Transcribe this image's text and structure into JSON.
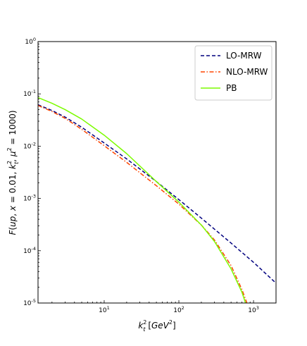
{
  "chart_data": {
    "type": "line",
    "xlabel": "k_t^2 [GeV^2]",
    "ylabel": "F(up, x = 0.01, k_t^2, μ^2 = 1000)",
    "xscale": "log",
    "yscale": "log",
    "xlim": [
      1.3,
      2000
    ],
    "ylim": [
      1e-05,
      1
    ],
    "x_ticks": [
      {
        "base": "10",
        "exp": "1",
        "value": 10
      },
      {
        "base": "10",
        "exp": "2",
        "value": 100
      },
      {
        "base": "10",
        "exp": "3",
        "value": 1000
      }
    ],
    "y_ticks": [
      {
        "base": "10",
        "exp": "0",
        "value": 1
      },
      {
        "base": "10",
        "exp": "-1",
        "value": 0.1
      },
      {
        "base": "10",
        "exp": "-2",
        "value": 0.01
      },
      {
        "base": "10",
        "exp": "-3",
        "value": 0.001
      },
      {
        "base": "10",
        "exp": "-4",
        "value": 0.0001
      },
      {
        "base": "10",
        "exp": "-5",
        "value": 1e-05
      }
    ],
    "legend_position": "top-right",
    "series": [
      {
        "name": "LO-MRW",
        "color": "#00007f",
        "dash": "dashed",
        "x": [
          1.3,
          2,
          3,
          5,
          10,
          20,
          50,
          100,
          200,
          500,
          1000,
          2000
        ],
        "y": [
          0.062,
          0.048,
          0.036,
          0.023,
          0.0115,
          0.0057,
          0.0021,
          0.00095,
          0.00042,
          0.00014,
          6e-05,
          2.4e-05
        ]
      },
      {
        "name": "NLO-MRW",
        "color": "#ff4500",
        "dash": "dashdot",
        "x": [
          1.3,
          2,
          3,
          5,
          10,
          20,
          50,
          100,
          200,
          300,
          500,
          700,
          850
        ],
        "y": [
          0.06,
          0.046,
          0.034,
          0.021,
          0.0102,
          0.0049,
          0.00175,
          0.00078,
          0.00031,
          0.00016,
          5.2e-05,
          1.8e-05,
          8.5e-06
        ]
      },
      {
        "name": "PB",
        "color": "#7cfc00",
        "dash": "solid",
        "x": [
          1.3,
          2,
          3,
          5,
          10,
          20,
          50,
          100,
          200,
          300,
          500,
          700,
          800
        ],
        "y": [
          0.085,
          0.066,
          0.05,
          0.033,
          0.0162,
          0.0072,
          0.0021,
          0.00085,
          0.00031,
          0.00015,
          4.5e-05,
          1.6e-05,
          9e-06
        ]
      }
    ]
  }
}
